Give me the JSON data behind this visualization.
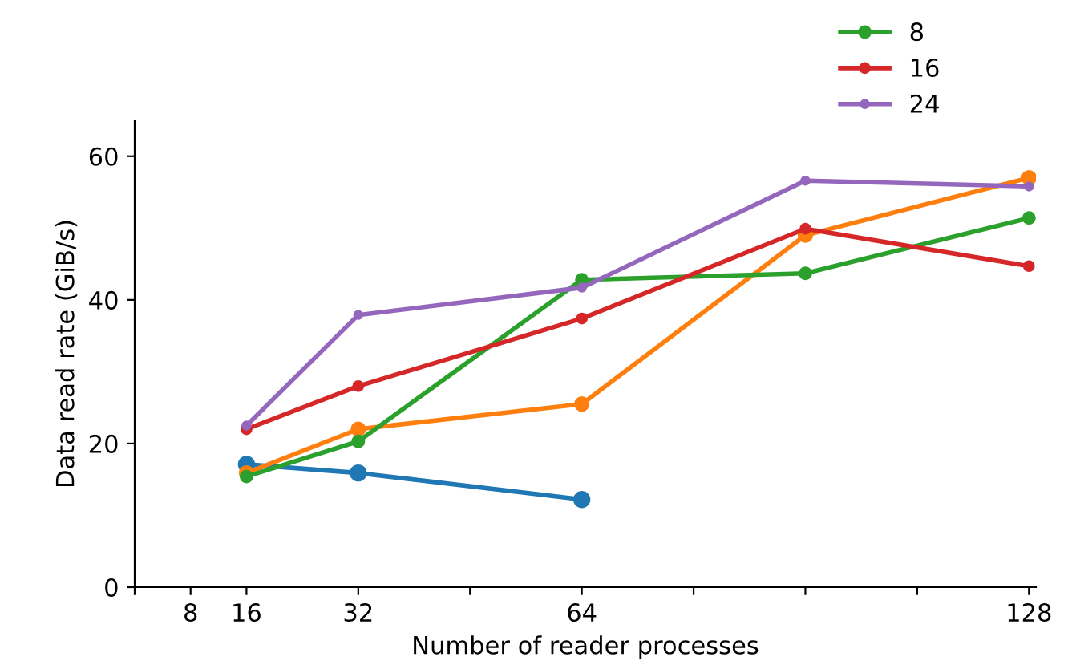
{
  "chart_data": {
    "type": "line",
    "xlabel": "Number of reader processes",
    "ylabel": "Data read rate (GiB/s)",
    "x": [
      16,
      32,
      64,
      96,
      128
    ],
    "series": [
      {
        "color": "#1f77b4",
        "values": [
          17.1,
          15.9,
          12.2,
          null,
          null
        ]
      },
      {
        "color": "#ff7f0e",
        "values": [
          15.9,
          22.0,
          25.5,
          49.0,
          57.0
        ]
      },
      {
        "name": "8",
        "color": "#2ca02c",
        "values": [
          15.4,
          20.3,
          42.8,
          43.7,
          51.4
        ]
      },
      {
        "name": "16",
        "color": "#d62728",
        "values": [
          22.0,
          28.0,
          37.4,
          49.9,
          44.7
        ]
      },
      {
        "name": "24",
        "color": "#9467bd",
        "values": [
          22.5,
          37.9,
          41.7,
          56.6,
          55.8
        ]
      }
    ],
    "xlim": [
      0,
      129
    ],
    "ylim": [
      0,
      65
    ],
    "xticks": [
      {
        "value": 0,
        "label": null
      },
      8,
      16,
      32,
      {
        "value": 48,
        "label": null
      },
      64,
      {
        "value": 80,
        "label": null
      },
      {
        "value": 96,
        "label": null
      },
      {
        "value": 112,
        "label": null
      },
      128
    ],
    "yticks": [
      0,
      20,
      40,
      60
    ],
    "marker": "circle",
    "line_style": "solid",
    "grid": false,
    "legend": "top right"
  }
}
